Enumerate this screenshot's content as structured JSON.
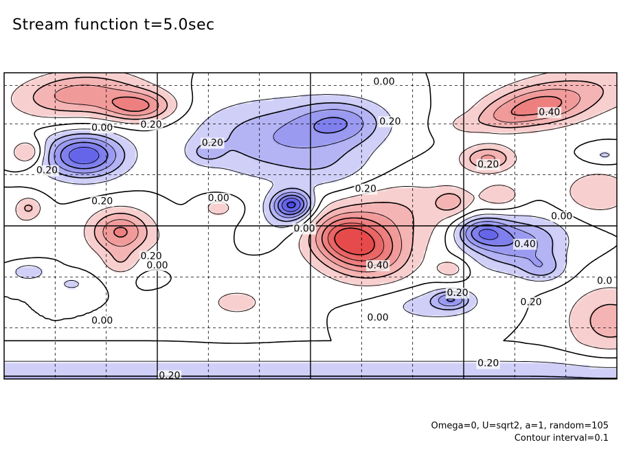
{
  "chart_data": {
    "type": "heatmap",
    "title": "Stream function t=5.0sec",
    "xlabel": "",
    "ylabel": "",
    "grid": true,
    "colors": {
      "positive": "#e64a4a",
      "negative": "#4a4ae6",
      "neutral": "#ffffff",
      "contour": "#000000"
    },
    "contour_interval": 0.1,
    "notes": [
      "Omega=0, U=sqrt2, a=1, random=105",
      "Contour interval=0.1"
    ],
    "contour_labels": [
      {
        "text": "0.00",
        "x": 0.62,
        "y": 0.97
      },
      {
        "text": "0.20",
        "x": 0.24,
        "y": 0.83
      },
      {
        "text": "0.40",
        "x": 0.89,
        "y": 0.87
      },
      {
        "text": "0.00",
        "x": 0.16,
        "y": 0.82
      },
      {
        "text": "0.20",
        "x": 0.34,
        "y": 0.77
      },
      {
        "text": "0.20",
        "x": 0.63,
        "y": 0.84
      },
      {
        "text": "0.20",
        "x": 0.07,
        "y": 0.68
      },
      {
        "text": "0.20",
        "x": 0.79,
        "y": 0.7
      },
      {
        "text": "0.20",
        "x": 0.16,
        "y": 0.58
      },
      {
        "text": "0.00",
        "x": 0.35,
        "y": 0.59
      },
      {
        "text": "0.20",
        "x": 0.59,
        "y": 0.62
      },
      {
        "text": "0.00",
        "x": 0.91,
        "y": 0.53
      },
      {
        "text": "0.00",
        "x": 0.49,
        "y": 0.49
      },
      {
        "text": "0.40",
        "x": 0.85,
        "y": 0.44
      },
      {
        "text": "0.20",
        "x": 0.24,
        "y": 0.4
      },
      {
        "text": "0.00",
        "x": 0.25,
        "y": 0.37
      },
      {
        "text": "0.40",
        "x": 0.61,
        "y": 0.37
      },
      {
        "text": "0.0",
        "x": 0.98,
        "y": 0.32
      },
      {
        "text": "0.20",
        "x": 0.74,
        "y": 0.28
      },
      {
        "text": "0.20",
        "x": 0.86,
        "y": 0.25
      },
      {
        "text": "0.00",
        "x": 0.16,
        "y": 0.19
      },
      {
        "text": "0.00",
        "x": 0.61,
        "y": 0.2
      },
      {
        "text": "0.20",
        "x": 0.79,
        "y": 0.05
      },
      {
        "text": "0.20",
        "x": 0.27,
        "y": 0.01
      }
    ],
    "blobs": [
      {
        "x": 0.12,
        "y": 0.93,
        "sx": 0.07,
        "sy": 0.05,
        "a": 0.35,
        "r": 0.3
      },
      {
        "x": 0.22,
        "y": 0.89,
        "sx": 0.04,
        "sy": 0.035,
        "a": 0.4
      },
      {
        "x": 0.97,
        "y": 0.96,
        "sx": 0.08,
        "sy": 0.06,
        "a": 0.15
      },
      {
        "x": 0.87,
        "y": 0.89,
        "sx": 0.06,
        "sy": 0.045,
        "a": 0.42,
        "r": 0.4
      },
      {
        "x": 0.79,
        "y": 0.72,
        "sx": 0.03,
        "sy": 0.03,
        "a": 0.32,
        "r": -0.5
      },
      {
        "x": 0.81,
        "y": 0.85,
        "sx": 0.03,
        "sy": 0.03,
        "a": 0.12
      },
      {
        "x": 0.75,
        "y": 0.83,
        "sx": 0.025,
        "sy": 0.025,
        "a": 0.1
      },
      {
        "x": 0.04,
        "y": 0.74,
        "sx": 0.02,
        "sy": 0.03,
        "a": 0.25
      },
      {
        "x": 0.04,
        "y": 0.56,
        "sx": 0.015,
        "sy": 0.025,
        "a": 0.2
      },
      {
        "x": 0.19,
        "y": 0.48,
        "sx": 0.035,
        "sy": 0.05,
        "a": 0.42
      },
      {
        "x": 0.19,
        "y": 0.38,
        "sx": 0.02,
        "sy": 0.03,
        "a": 0.14
      },
      {
        "x": 0.3,
        "y": 0.44,
        "sx": 0.03,
        "sy": 0.04,
        "a": 0.08
      },
      {
        "x": 0.35,
        "y": 0.56,
        "sx": 0.02,
        "sy": 0.025,
        "a": 0.15
      },
      {
        "x": 0.38,
        "y": 0.25,
        "sx": 0.05,
        "sy": 0.05,
        "a": 0.12
      },
      {
        "x": 0.58,
        "y": 0.43,
        "sx": 0.05,
        "sy": 0.07,
        "a": 0.58,
        "r": 0.3
      },
      {
        "x": 0.63,
        "y": 0.55,
        "sx": 0.08,
        "sy": 0.08,
        "a": 0.2,
        "r": 0.4
      },
      {
        "x": 0.55,
        "y": 0.47,
        "sx": 0.03,
        "sy": 0.04,
        "a": 0.15
      },
      {
        "x": 0.73,
        "y": 0.58,
        "sx": 0.02,
        "sy": 0.03,
        "a": 0.18
      },
      {
        "x": 0.81,
        "y": 0.6,
        "sx": 0.025,
        "sy": 0.03,
        "a": 0.16
      },
      {
        "x": 0.73,
        "y": 0.36,
        "sx": 0.02,
        "sy": 0.025,
        "a": 0.15
      },
      {
        "x": 0.97,
        "y": 0.61,
        "sx": 0.04,
        "sy": 0.05,
        "a": 0.2
      },
      {
        "x": 0.99,
        "y": 0.19,
        "sx": 0.05,
        "sy": 0.08,
        "a": 0.25
      },
      {
        "x": 0.02,
        "y": 0.48,
        "sx": 0.03,
        "sy": 0.05,
        "a": 0.08
      },
      {
        "x": 0.13,
        "y": 0.73,
        "sx": 0.045,
        "sy": 0.05,
        "a": -0.58
      },
      {
        "x": 0.42,
        "y": 0.79,
        "sx": 0.09,
        "sy": 0.09,
        "a": -0.18,
        "r": -0.3
      },
      {
        "x": 0.55,
        "y": 0.84,
        "sx": 0.05,
        "sy": 0.05,
        "a": -0.3
      },
      {
        "x": 0.48,
        "y": 0.78,
        "sx": 0.08,
        "sy": 0.08,
        "a": -0.12
      },
      {
        "x": 0.54,
        "y": 0.67,
        "sx": 0.06,
        "sy": 0.06,
        "a": -0.12
      },
      {
        "x": 0.33,
        "y": 0.74,
        "sx": 0.02,
        "sy": 0.025,
        "a": -0.15
      },
      {
        "x": 0.47,
        "y": 0.57,
        "sx": 0.022,
        "sy": 0.03,
        "a": -0.58
      },
      {
        "x": 0.46,
        "y": 0.52,
        "sx": 0.03,
        "sy": 0.04,
        "a": -0.15
      },
      {
        "x": 0.78,
        "y": 0.48,
        "sx": 0.03,
        "sy": 0.035,
        "a": -0.42
      },
      {
        "x": 0.84,
        "y": 0.44,
        "sx": 0.05,
        "sy": 0.06,
        "a": -0.35,
        "r": -0.4
      },
      {
        "x": 0.88,
        "y": 0.36,
        "sx": 0.025,
        "sy": 0.03,
        "a": -0.2
      },
      {
        "x": 0.73,
        "y": 0.26,
        "sx": 0.02,
        "sy": 0.02,
        "a": -0.3
      },
      {
        "x": 0.7,
        "y": 0.24,
        "sx": 0.06,
        "sy": 0.04,
        "a": -0.15
      },
      {
        "x": 0.04,
        "y": 0.35,
        "sx": 0.02,
        "sy": 0.02,
        "a": -0.18
      },
      {
        "x": 0.11,
        "y": 0.31,
        "sx": 0.02,
        "sy": 0.02,
        "a": -0.12
      },
      {
        "x": 0.24,
        "y": 0.33,
        "sx": 0.015,
        "sy": 0.015,
        "a": -0.05
      },
      {
        "x": 0.98,
        "y": 0.73,
        "sx": 0.02,
        "sy": 0.02,
        "a": -0.12
      },
      {
        "x": 0.42,
        "y": 0.45,
        "sx": 0.02,
        "sy": 0.02,
        "a": -0.04
      }
    ],
    "bottom_strip": {
      "level": -0.22,
      "y0": 0.0,
      "y1": 0.12
    },
    "x_grid_major": [
      0.25,
      0.5,
      0.75
    ],
    "x_grid_minor": [
      0.0833,
      0.1667,
      0.3333,
      0.4167,
      0.5833,
      0.6667,
      0.8333,
      0.9167
    ],
    "y_grid_major": [
      0.5
    ],
    "y_grid_minor": [
      0.1667,
      0.3333,
      0.6667,
      0.8333,
      0.9583
    ]
  }
}
